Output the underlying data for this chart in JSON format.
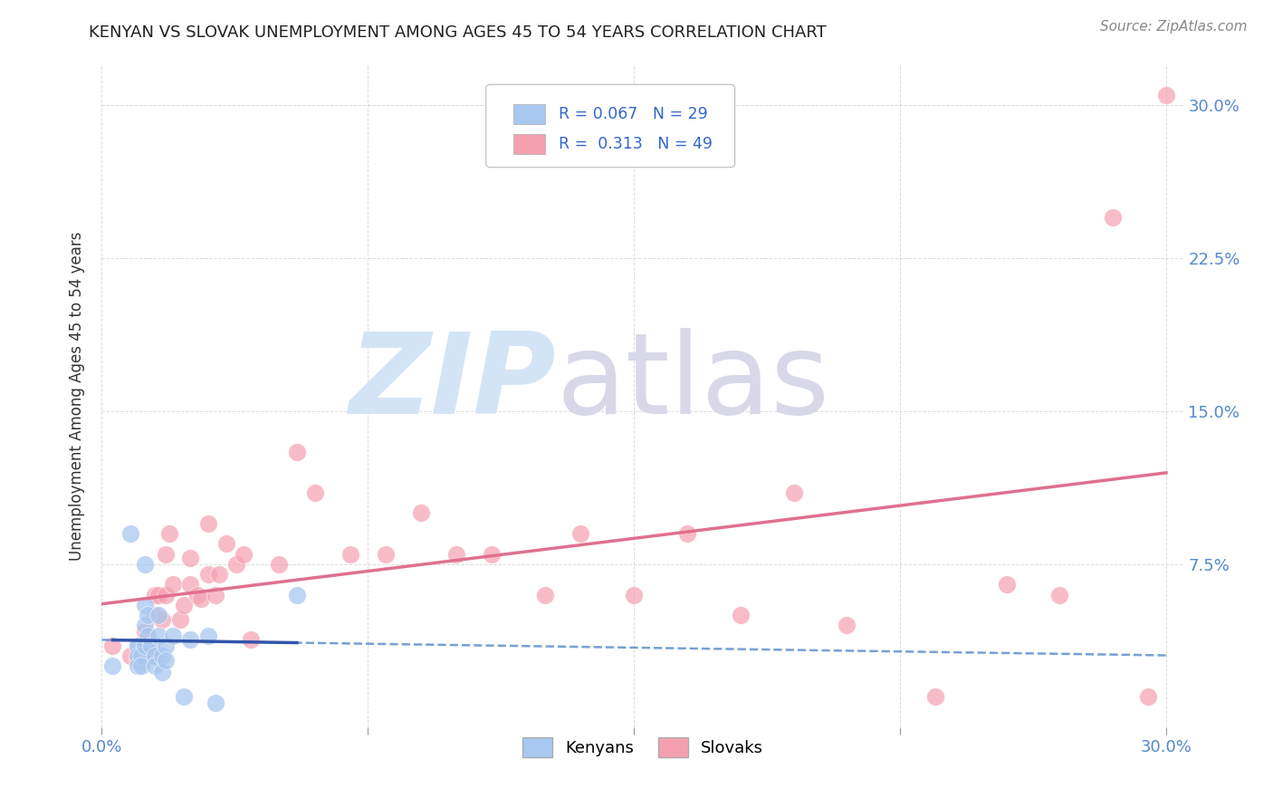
{
  "title": "KENYAN VS SLOVAK UNEMPLOYMENT AMONG AGES 45 TO 54 YEARS CORRELATION CHART",
  "source": "Source: ZipAtlas.com",
  "ylabel": "Unemployment Among Ages 45 to 54 years",
  "xlim": [
    0.0,
    0.305
  ],
  "ylim": [
    -0.005,
    0.32
  ],
  "kenyan_color": "#a8c8f0",
  "slovak_color": "#f5a0b0",
  "kenyan_line_color": "#5588cc",
  "slovak_line_color": "#e07090",
  "kenyan_R": 0.067,
  "kenyan_N": 29,
  "slovak_R": 0.313,
  "slovak_N": 49,
  "kenyan_x": [
    0.003,
    0.008,
    0.01,
    0.01,
    0.01,
    0.01,
    0.011,
    0.011,
    0.012,
    0.012,
    0.012,
    0.012,
    0.013,
    0.013,
    0.014,
    0.015,
    0.015,
    0.016,
    0.016,
    0.017,
    0.017,
    0.018,
    0.018,
    0.02,
    0.023,
    0.025,
    0.03,
    0.032,
    0.055
  ],
  "kenyan_y": [
    0.025,
    0.09,
    0.035,
    0.035,
    0.03,
    0.025,
    0.03,
    0.025,
    0.075,
    0.055,
    0.045,
    0.035,
    0.05,
    0.04,
    0.035,
    0.03,
    0.025,
    0.05,
    0.04,
    0.03,
    0.022,
    0.035,
    0.028,
    0.04,
    0.01,
    0.038,
    0.04,
    0.007,
    0.06
  ],
  "slovak_x": [
    0.003,
    0.008,
    0.01,
    0.012,
    0.013,
    0.014,
    0.015,
    0.015,
    0.016,
    0.017,
    0.018,
    0.018,
    0.019,
    0.02,
    0.022,
    0.023,
    0.025,
    0.025,
    0.027,
    0.028,
    0.03,
    0.03,
    0.032,
    0.033,
    0.035,
    0.038,
    0.04,
    0.042,
    0.05,
    0.055,
    0.06,
    0.07,
    0.08,
    0.09,
    0.1,
    0.11,
    0.125,
    0.135,
    0.15,
    0.165,
    0.18,
    0.195,
    0.21,
    0.235,
    0.255,
    0.27,
    0.285,
    0.295,
    0.3
  ],
  "slovak_y": [
    0.035,
    0.03,
    0.028,
    0.042,
    0.035,
    0.03,
    0.06,
    0.05,
    0.06,
    0.048,
    0.08,
    0.06,
    0.09,
    0.065,
    0.048,
    0.055,
    0.078,
    0.065,
    0.06,
    0.058,
    0.095,
    0.07,
    0.06,
    0.07,
    0.085,
    0.075,
    0.08,
    0.038,
    0.075,
    0.13,
    0.11,
    0.08,
    0.08,
    0.1,
    0.08,
    0.08,
    0.06,
    0.09,
    0.06,
    0.09,
    0.05,
    0.11,
    0.045,
    0.01,
    0.065,
    0.06,
    0.245,
    0.01,
    0.305
  ],
  "background_color": "#ffffff",
  "grid_color": "#cccccc",
  "axis_tick_color": "#5588cc",
  "legend_box_color_kenyan": "#a8c8f0",
  "legend_box_color_slovak": "#f5a0b0",
  "legend_text_color": "#3366cc",
  "right_yticks": [
    0.075,
    0.15,
    0.225,
    0.3
  ],
  "right_ytick_labels": [
    "7.5%",
    "15.0%",
    "22.5%",
    "30.0%"
  ],
  "xtick_positions": [
    0.0,
    0.075,
    0.15,
    0.225,
    0.3
  ],
  "xtick_labels_show": [
    "0.0%",
    "",
    "",
    "",
    "30.0%"
  ],
  "ytick_positions": [
    0.075,
    0.15,
    0.225,
    0.3
  ]
}
